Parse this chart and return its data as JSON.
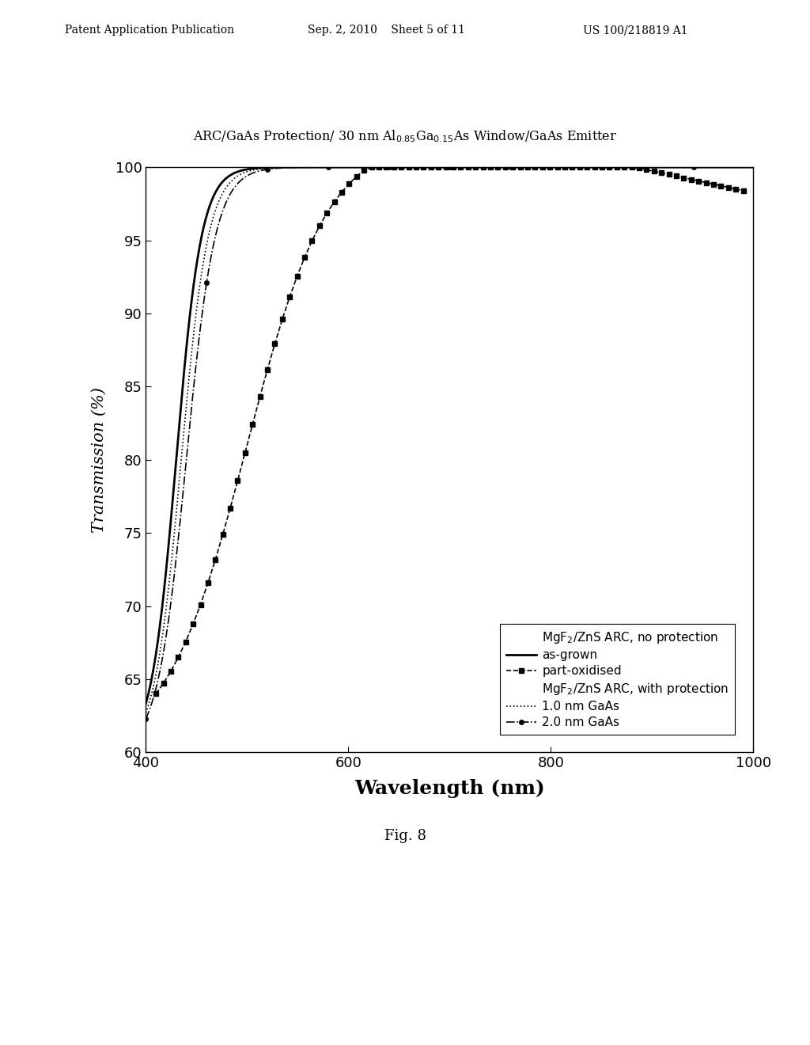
{
  "title_main": "ARC/GaAs Protection/ 30 nm Al",
  "title_subscript1": "0.85",
  "title_mid": "Ga",
  "title_subscript2": "0.15",
  "title_end": "As Window/GaAs Emitter",
  "xlabel": "Wavelength (nm)",
  "ylabel": "Transmission (%)",
  "xlim": [
    400,
    1000
  ],
  "ylim": [
    60,
    100
  ],
  "xticks": [
    400,
    600,
    800,
    1000
  ],
  "yticks": [
    60,
    65,
    70,
    75,
    80,
    85,
    90,
    95,
    100
  ],
  "background_color": "#ffffff",
  "legend_entries": [
    "MgF\\u2082/ZnS ARC, no protection",
    "as-grown",
    "part-oxidised",
    "MgF\\u2082/ZnS ARC, with protection",
    "1.0 nm GaAs",
    "2.0 nm GaAs"
  ],
  "fig_label": "Fig. 8",
  "header_left": "Patent Application Publication",
  "header_mid": "Sep. 2, 2010    Sheet 5 of 11",
  "header_right": "US 100/218819 A1"
}
